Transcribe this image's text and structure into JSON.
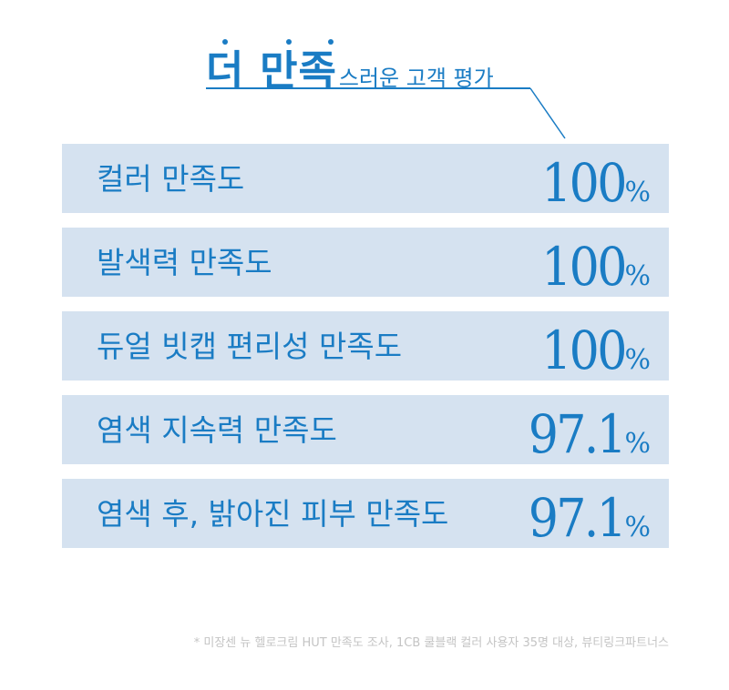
{
  "headline": {
    "emphasis": "더 만족",
    "rest": "스러운 고객 평가"
  },
  "rows": [
    {
      "label": "컬러 만족도",
      "number": "100",
      "unit": "%"
    },
    {
      "label": "발색력 만족도",
      "number": "100",
      "unit": "%"
    },
    {
      "label": "듀얼 빗캡 편리성 만족도",
      "number": "100",
      "unit": "%"
    },
    {
      "label": "염색 지속력 만족도",
      "number": "97.1",
      "unit": "%"
    },
    {
      "label": "염색 후, 밝아진 피부 만족도",
      "number": "97.1",
      "unit": "%"
    }
  ],
  "footnote": "* 미장센 뉴 헬로크림 HUT 만족도 조사, 1CB 쿨블랙 컬러 사용자 35명 대상, 뷰티링크파트너스",
  "colors": {
    "accent": "#1a7cc4",
    "row_background": "#d5e2f0",
    "footnote": "#c4c4c4"
  }
}
